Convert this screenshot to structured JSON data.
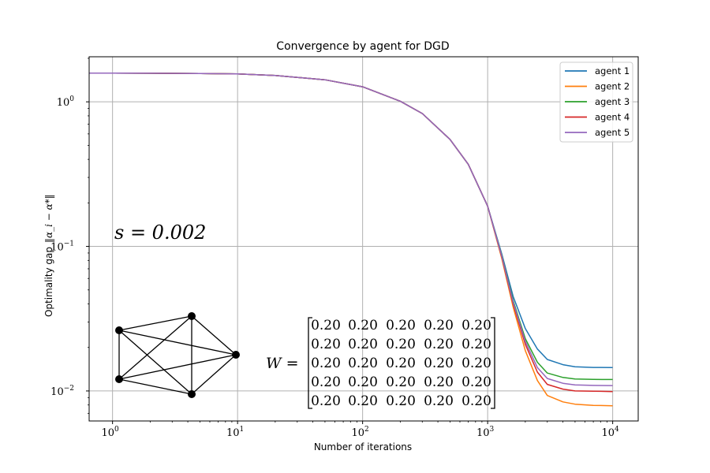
{
  "chart_data": {
    "type": "line",
    "title": "Convergence by agent for DGD",
    "xlabel": "Number of iterations",
    "ylabel": "Optimality gap",
    "ylabel_math": "‖α_i − α*‖",
    "xscale": "log",
    "yscale": "log",
    "xlim": [
      0.65,
      16000
    ],
    "ylim": [
      0.0062,
      2.05
    ],
    "grid": true,
    "legend_position": "top-right",
    "x_ticks": [
      {
        "value": 1,
        "base": "10",
        "exp": "0"
      },
      {
        "value": 10,
        "base": "10",
        "exp": "1"
      },
      {
        "value": 100,
        "base": "10",
        "exp": "2"
      },
      {
        "value": 1000,
        "base": "10",
        "exp": "3"
      },
      {
        "value": 10000,
        "base": "10",
        "exp": "4"
      }
    ],
    "y_ticks": [
      {
        "value": 1,
        "base": "10",
        "exp": "0"
      },
      {
        "value": 0.1,
        "base": "10",
        "exp": "−1"
      },
      {
        "value": 0.01,
        "base": "10",
        "exp": "−2"
      }
    ],
    "x": [
      0.65,
      1,
      2,
      5,
      10,
      20,
      50,
      100,
      200,
      300,
      500,
      700,
      1000,
      1300,
      1600,
      2000,
      2500,
      3000,
      4000,
      5000,
      7000,
      10000
    ],
    "shared_y": [
      1.58,
      1.58,
      1.577,
      1.57,
      1.56,
      1.52,
      1.42,
      1.27,
      1.01,
      0.83,
      0.55,
      0.37,
      0.19
    ],
    "series": [
      {
        "name": "agent 1",
        "color": "#1f77b4",
        "tail": [
          0.088,
          0.045,
          0.027,
          0.0195,
          0.0165,
          0.0152,
          0.0147,
          0.01455,
          0.01452,
          0.0145
        ]
      },
      {
        "name": "agent 2",
        "color": "#ff7f0e",
        "tail": [
          0.082,
          0.038,
          0.019,
          0.0118,
          0.0093,
          0.0084,
          0.0081,
          0.00795,
          0.0079,
          0.0079
        ]
      },
      {
        "name": "agent 3",
        "color": "#2ca02c",
        "tail": [
          0.086,
          0.042,
          0.023,
          0.0158,
          0.0133,
          0.0124,
          0.0121,
          0.01202,
          0.012,
          0.012
        ]
      },
      {
        "name": "agent 4",
        "color": "#d62728",
        "tail": [
          0.084,
          0.04,
          0.021,
          0.0135,
          0.0111,
          0.0103,
          0.01,
          0.00996,
          0.0099,
          0.0099
        ]
      },
      {
        "name": "agent 5",
        "color": "#9467bd",
        "tail": [
          0.085,
          0.041,
          0.022,
          0.0145,
          0.0122,
          0.0113,
          0.011,
          0.01092,
          0.0109,
          0.0109
        ]
      }
    ],
    "annotations": {
      "step_size": "s = 0.002",
      "matrix_label": "W =",
      "matrix": [
        [
          "0.20",
          "0.20",
          "0.20",
          "0.20",
          "0.20"
        ],
        [
          "0.20",
          "0.20",
          "0.20",
          "0.20",
          "0.20"
        ],
        [
          "0.20",
          "0.20",
          "0.20",
          "0.20",
          "0.20"
        ],
        [
          "0.20",
          "0.20",
          "0.20",
          "0.20",
          "0.20"
        ],
        [
          "0.20",
          "0.20",
          "0.20",
          "0.20",
          "0.20"
        ]
      ],
      "graph": "complete graph on 5 nodes"
    }
  }
}
